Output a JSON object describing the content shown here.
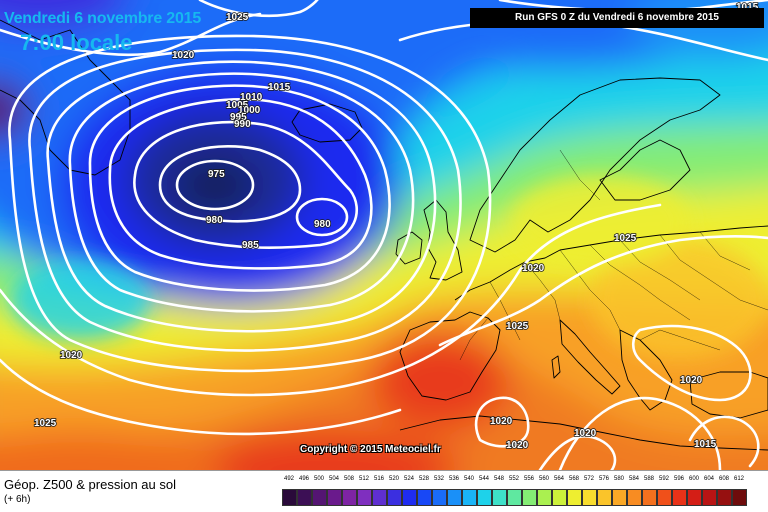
{
  "header": {
    "date_title": "Vendredi 6 novembre 2015",
    "time_title": "7:00 locale",
    "run_info": "Run GFS 0 Z du Vendredi 6 novembre 2015"
  },
  "copyright": "Copyright © 2015 Meteociel.fr",
  "legend": {
    "title": "Géop. Z500 & pression au sol",
    "subtitle": "(+ 6h)",
    "scale": [
      {
        "label": "492",
        "color": "#2a0a3a"
      },
      {
        "label": "496",
        "color": "#3c0f55"
      },
      {
        "label": "500",
        "color": "#541572"
      },
      {
        "label": "504",
        "color": "#6a1a8c"
      },
      {
        "label": "508",
        "color": "#7e24a4"
      },
      {
        "label": "512",
        "color": "#7f2fbf"
      },
      {
        "label": "516",
        "color": "#5f2fd0"
      },
      {
        "label": "520",
        "color": "#3b2fe0"
      },
      {
        "label": "524",
        "color": "#1f2cf0"
      },
      {
        "label": "528",
        "color": "#1848f6"
      },
      {
        "label": "532",
        "color": "#1a6cf8"
      },
      {
        "label": "536",
        "color": "#1a90f8"
      },
      {
        "label": "540",
        "color": "#1ab4f6"
      },
      {
        "label": "544",
        "color": "#1ed2ea"
      },
      {
        "label": "548",
        "color": "#3ee0c8"
      },
      {
        "label": "552",
        "color": "#5fe8a0"
      },
      {
        "label": "556",
        "color": "#84ec74"
      },
      {
        "label": "560",
        "color": "#aaf050"
      },
      {
        "label": "564",
        "color": "#ccf03a"
      },
      {
        "label": "568",
        "color": "#eeee30"
      },
      {
        "label": "572",
        "color": "#f8dc2e"
      },
      {
        "label": "576",
        "color": "#fac42a"
      },
      {
        "label": "580",
        "color": "#faa826"
      },
      {
        "label": "584",
        "color": "#f88c22"
      },
      {
        "label": "588",
        "color": "#f4701e"
      },
      {
        "label": "592",
        "color": "#f0501a"
      },
      {
        "label": "596",
        "color": "#e83218"
      },
      {
        "label": "600",
        "color": "#d41e16"
      },
      {
        "label": "604",
        "color": "#b81414"
      },
      {
        "label": "608",
        "color": "#961010"
      },
      {
        "label": "612",
        "color": "#6e0c0c"
      }
    ]
  },
  "isobar_labels": [
    "1025",
    "1020",
    "1015",
    "1010",
    "1005",
    "1000",
    "995",
    "990",
    "975",
    "980",
    "980",
    "985",
    "1020",
    "1025",
    "1025",
    "1020",
    "1020",
    "1025",
    "1020",
    "1020",
    "1015",
    "1020",
    "1015"
  ],
  "colors": {
    "low_core": "#1a2060",
    "deep_blue": "#1e35e0",
    "cyan": "#1ab4f6",
    "green": "#8aec70",
    "yellow": "#eeee30",
    "orange": "#f8a026",
    "red": "#e83a1c",
    "isobar": "#ffffff",
    "title": "#16b8f0"
  }
}
